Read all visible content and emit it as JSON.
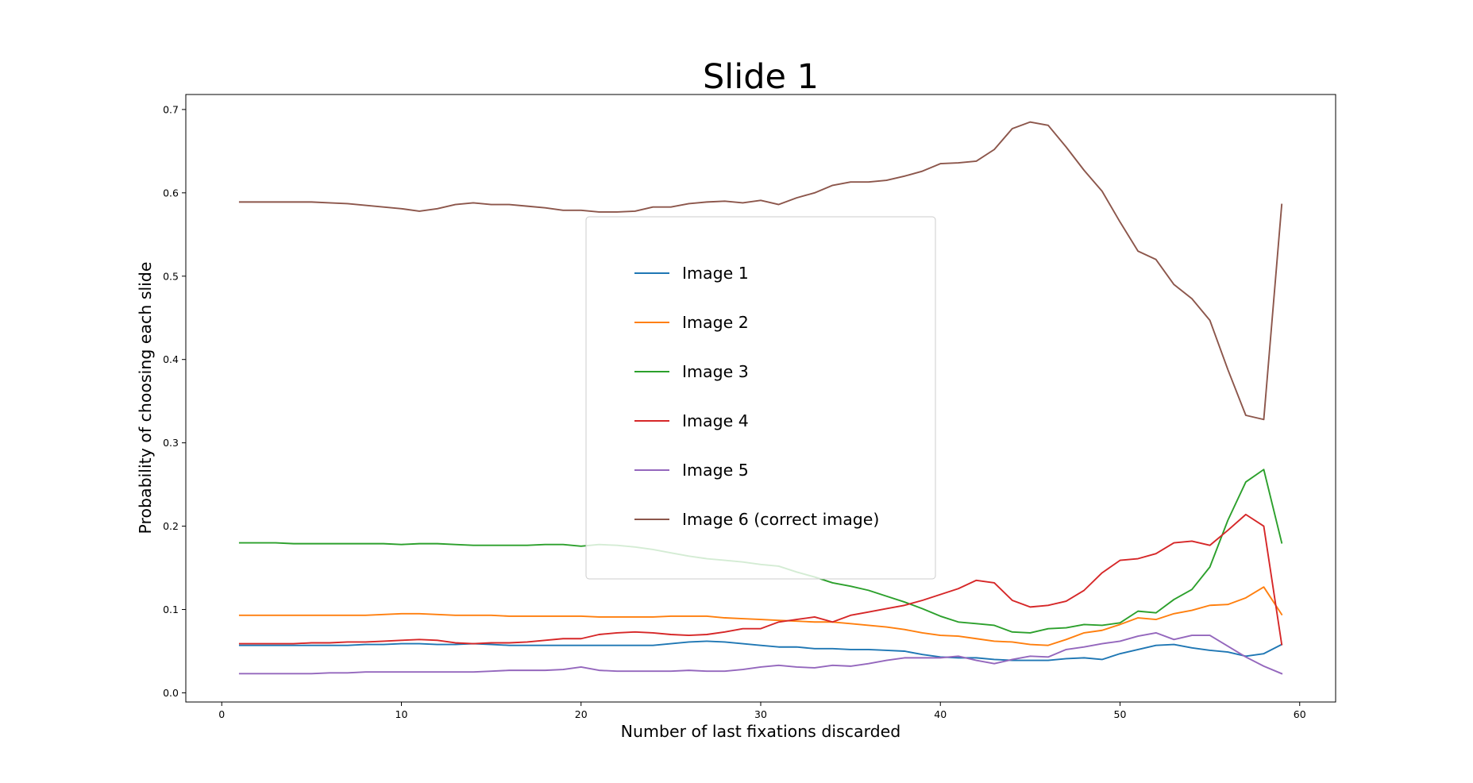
{
  "chart_data": {
    "type": "line",
    "title": "Slide 1",
    "xlabel": "Number of last fixations discarded",
    "ylabel": "Probability of choosing each slide",
    "xlim": [
      -2,
      62
    ],
    "ylim": [
      -0.011,
      0.718
    ],
    "xticks": [
      0,
      10,
      20,
      30,
      40,
      50,
      60
    ],
    "yticks": [
      0.0,
      0.1,
      0.2,
      0.3,
      0.4,
      0.5,
      0.6,
      0.7
    ],
    "ytick_labels": [
      "0.0",
      "0.1",
      "0.2",
      "0.3",
      "0.4",
      "0.5",
      "0.6",
      "0.7"
    ],
    "grid": false,
    "legend_placement": "center",
    "x": [
      1,
      2,
      3,
      4,
      5,
      6,
      7,
      8,
      9,
      10,
      11,
      12,
      13,
      14,
      15,
      16,
      17,
      18,
      19,
      20,
      21,
      22,
      23,
      24,
      25,
      26,
      27,
      28,
      29,
      30,
      31,
      32,
      33,
      34,
      35,
      36,
      37,
      38,
      39,
      40,
      41,
      42,
      43,
      44,
      45,
      46,
      47,
      48,
      49,
      50,
      51,
      52,
      53,
      54,
      55,
      56,
      57,
      58,
      59
    ],
    "series": [
      {
        "name": "Image 1",
        "color": "#1f77b4",
        "values": [
          0.057,
          0.057,
          0.057,
          0.057,
          0.057,
          0.057,
          0.057,
          0.058,
          0.058,
          0.059,
          0.059,
          0.058,
          0.058,
          0.059,
          0.058,
          0.057,
          0.057,
          0.057,
          0.057,
          0.057,
          0.057,
          0.057,
          0.057,
          0.057,
          0.059,
          0.061,
          0.062,
          0.061,
          0.059,
          0.057,
          0.055,
          0.055,
          0.053,
          0.053,
          0.052,
          0.052,
          0.051,
          0.05,
          0.046,
          0.043,
          0.042,
          0.042,
          0.04,
          0.039,
          0.039,
          0.039,
          0.041,
          0.042,
          0.04,
          0.047,
          0.052,
          0.057,
          0.058,
          0.054,
          0.051,
          0.049,
          0.044,
          0.047,
          0.058
        ]
      },
      {
        "name": "Image 2",
        "color": "#ff7f0e",
        "values": [
          0.093,
          0.093,
          0.093,
          0.093,
          0.093,
          0.093,
          0.093,
          0.093,
          0.094,
          0.095,
          0.095,
          0.094,
          0.093,
          0.093,
          0.093,
          0.092,
          0.092,
          0.092,
          0.092,
          0.092,
          0.091,
          0.091,
          0.091,
          0.091,
          0.092,
          0.092,
          0.092,
          0.09,
          0.089,
          0.088,
          0.087,
          0.086,
          0.085,
          0.085,
          0.083,
          0.081,
          0.079,
          0.076,
          0.072,
          0.069,
          0.068,
          0.065,
          0.062,
          0.061,
          0.058,
          0.057,
          0.064,
          0.072,
          0.075,
          0.082,
          0.09,
          0.088,
          0.095,
          0.099,
          0.105,
          0.106,
          0.114,
          0.127,
          0.094
        ]
      },
      {
        "name": "Image 3",
        "color": "#2ca02c",
        "values": [
          0.18,
          0.18,
          0.18,
          0.179,
          0.179,
          0.179,
          0.179,
          0.179,
          0.179,
          0.178,
          0.179,
          0.179,
          0.178,
          0.177,
          0.177,
          0.177,
          0.177,
          0.178,
          0.178,
          0.176,
          0.178,
          0.177,
          0.175,
          0.172,
          0.168,
          0.164,
          0.161,
          0.159,
          0.157,
          0.154,
          0.152,
          0.145,
          0.139,
          0.132,
          0.128,
          0.123,
          0.116,
          0.109,
          0.101,
          0.092,
          0.085,
          0.083,
          0.081,
          0.073,
          0.072,
          0.077,
          0.078,
          0.082,
          0.081,
          0.084,
          0.098,
          0.096,
          0.112,
          0.124,
          0.151,
          0.207,
          0.253,
          0.268,
          0.18
        ]
      },
      {
        "name": "Image 4",
        "color": "#d62728",
        "values": [
          0.059,
          0.059,
          0.059,
          0.059,
          0.06,
          0.06,
          0.061,
          0.061,
          0.062,
          0.063,
          0.064,
          0.063,
          0.06,
          0.059,
          0.06,
          0.06,
          0.061,
          0.063,
          0.065,
          0.065,
          0.07,
          0.072,
          0.073,
          0.072,
          0.07,
          0.069,
          0.07,
          0.073,
          0.077,
          0.077,
          0.085,
          0.088,
          0.091,
          0.085,
          0.093,
          0.097,
          0.101,
          0.105,
          0.111,
          0.118,
          0.125,
          0.135,
          0.132,
          0.111,
          0.103,
          0.105,
          0.11,
          0.123,
          0.144,
          0.159,
          0.161,
          0.167,
          0.18,
          0.182,
          0.177,
          0.195,
          0.214,
          0.2,
          0.058
        ]
      },
      {
        "name": "Image 5",
        "color": "#9467bd",
        "values": [
          0.023,
          0.023,
          0.023,
          0.023,
          0.023,
          0.024,
          0.024,
          0.025,
          0.025,
          0.025,
          0.025,
          0.025,
          0.025,
          0.025,
          0.026,
          0.027,
          0.027,
          0.027,
          0.028,
          0.031,
          0.027,
          0.026,
          0.026,
          0.026,
          0.026,
          0.027,
          0.026,
          0.026,
          0.028,
          0.031,
          0.033,
          0.031,
          0.03,
          0.033,
          0.032,
          0.035,
          0.039,
          0.042,
          0.042,
          0.042,
          0.044,
          0.039,
          0.035,
          0.04,
          0.044,
          0.043,
          0.052,
          0.055,
          0.059,
          0.062,
          0.068,
          0.072,
          0.064,
          0.069,
          0.069,
          0.056,
          0.043,
          0.032,
          0.023
        ]
      },
      {
        "name": "Image 6 (correct image)",
        "color": "#8c564b",
        "values": [
          0.589,
          0.589,
          0.589,
          0.589,
          0.589,
          0.588,
          0.587,
          0.585,
          0.583,
          0.581,
          0.578,
          0.581,
          0.586,
          0.588,
          0.586,
          0.586,
          0.584,
          0.582,
          0.579,
          0.579,
          0.577,
          0.577,
          0.578,
          0.583,
          0.583,
          0.587,
          0.589,
          0.59,
          0.588,
          0.591,
          0.586,
          0.594,
          0.6,
          0.609,
          0.613,
          0.613,
          0.615,
          0.62,
          0.626,
          0.635,
          0.636,
          0.638,
          0.652,
          0.677,
          0.685,
          0.681,
          0.655,
          0.627,
          0.602,
          0.565,
          0.53,
          0.52,
          0.49,
          0.473,
          0.447,
          0.388,
          0.333,
          0.328,
          0.586
        ]
      }
    ]
  }
}
